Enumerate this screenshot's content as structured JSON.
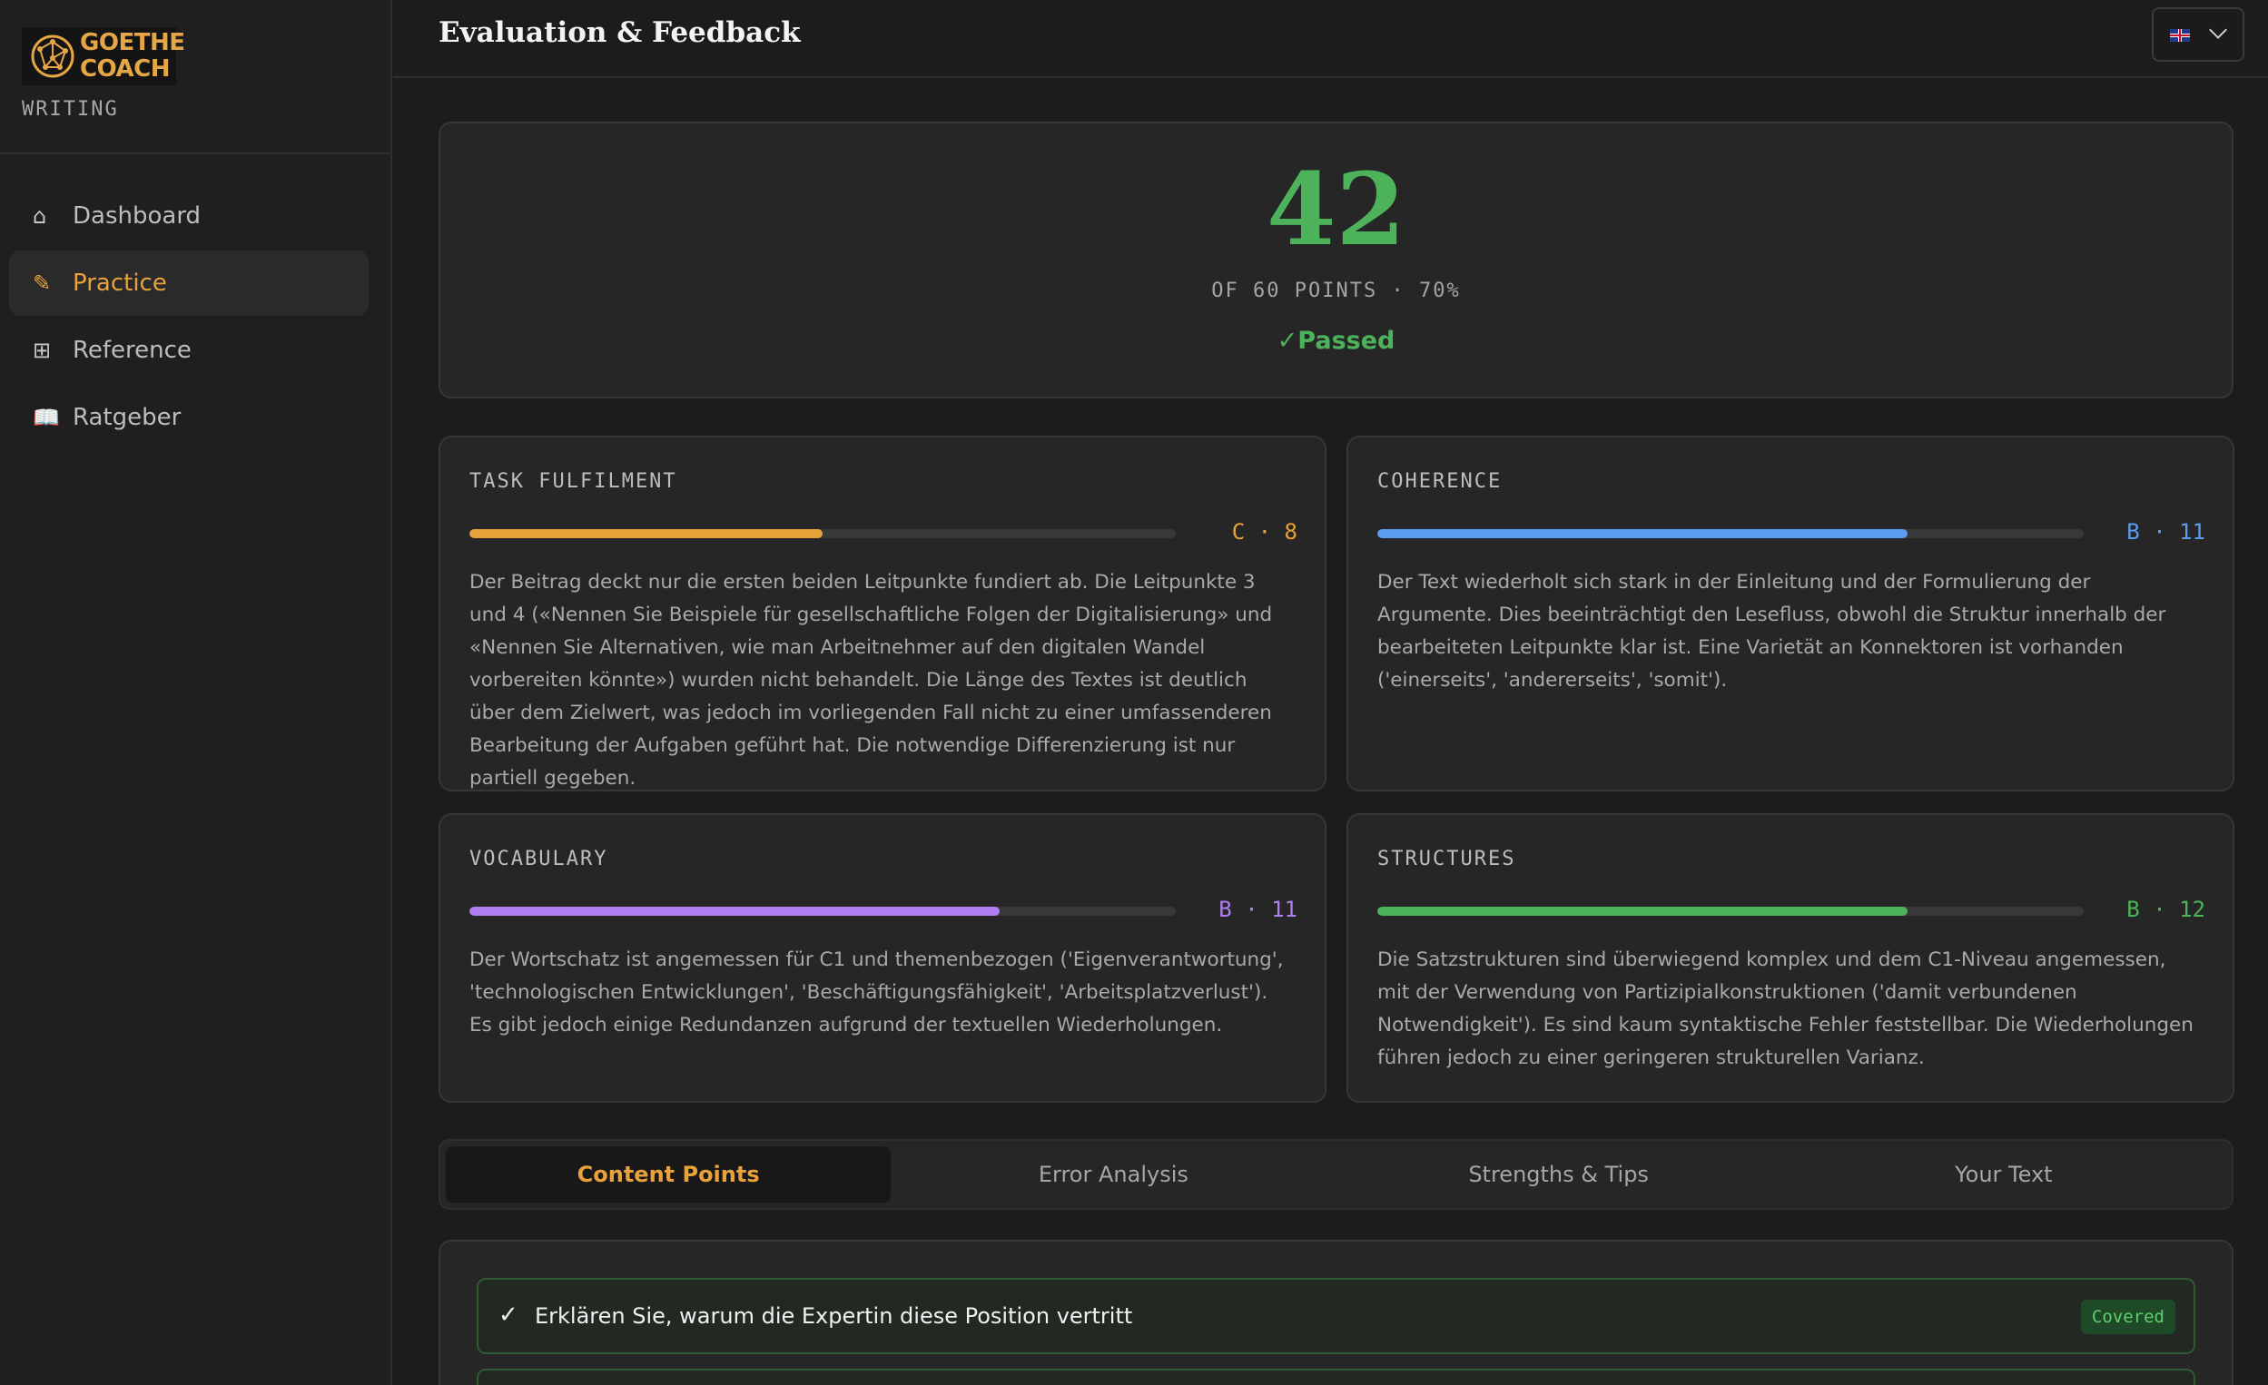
{
  "sidebar": {
    "brand": {
      "logo_line1": "GOETHE",
      "logo_line2": "COACH",
      "subtitle": "WRITING"
    },
    "items": [
      {
        "icon": "home-icon",
        "glyph": "⌂",
        "label": "Dashboard",
        "active": false
      },
      {
        "icon": "pencil-icon",
        "glyph": "✎",
        "label": "Practice",
        "active": true
      },
      {
        "icon": "grid-icon",
        "glyph": "⊞",
        "label": "Reference",
        "active": false
      },
      {
        "icon": "book-icon",
        "glyph": "📖",
        "label": "Ratgeber",
        "active": false
      }
    ]
  },
  "header": {
    "title": "Evaluation & Feedback",
    "language_flag": "uk-flag-icon"
  },
  "score": {
    "value": "42",
    "subtitle": "OF 60 POINTS · 70%",
    "status": "✓Passed",
    "color": "#4cb35b",
    "percent": 70
  },
  "criteria": [
    {
      "title": "TASK FULFILMENT",
      "grade": "C · 8",
      "progress": 0.5,
      "color": "#e8a23a",
      "text": "Der Beitrag deckt nur die ersten beiden Leitpunkte fundiert ab. Die Leitpunkte 3 und 4 («Nennen Sie Beispiele für gesellschaftliche Folgen der Digitalisierung» und «Nennen Sie Alternativen, wie man Arbeitnehmer auf den digitalen Wandel vorbereiten könnte») wurden nicht behandelt. Die Länge des Textes ist deutlich über dem Zielwert, was jedoch im vorliegenden Fall nicht zu einer umfassenderen Bearbeitung der Aufgaben geführt hat. Die notwendige Differenzierung ist nur partiell gegeben."
    },
    {
      "title": "COHERENCE",
      "grade": "B · 11",
      "progress": 0.75,
      "color": "#5b9bf0",
      "text": "Der Text wiederholt sich stark in der Einleitung und der Formulierung der Argumente. Dies beeinträchtigt den Lesefluss, obwohl die Struktur innerhalb der bearbeiteten Leitpunkte klar ist. Eine Varietät an Konnektoren ist vorhanden ('einerseits', 'andererseits', 'somit')."
    },
    {
      "title": "VOCABULARY",
      "grade": "B · 11",
      "progress": 0.75,
      "color": "#b07ef0",
      "text": "Der Wortschatz ist angemessen für C1 und themenbezogen ('Eigenverantwortung', 'technologischen Entwicklungen', 'Beschäftigungsfähigkeit', 'Arbeitsplatzverlust'). Es gibt jedoch einige Redundanzen aufgrund der textuellen Wiederholungen."
    },
    {
      "title": "STRUCTURES",
      "grade": "B · 12",
      "progress": 0.75,
      "color": "#4cb35b",
      "text": "Die Satzstrukturen sind überwiegend komplex und dem C1-Niveau angemessen, mit der Verwendung von Partizipialkonstruktionen ('damit verbundenen Notwendigkeit'). Es sind kaum syntaktische Fehler feststellbar. Die Wiederholungen führen jedoch zu einer geringeren strukturellen Varianz."
    }
  ],
  "tabs": [
    {
      "label": "Content Points",
      "active": true
    },
    {
      "label": "Error Analysis",
      "active": false
    },
    {
      "label": "Strengths & Tips",
      "active": false
    },
    {
      "label": "Your Text",
      "active": false
    }
  ],
  "content_points": [
    {
      "check": "✓",
      "text": "Erklären Sie, warum die Expertin diese Position vertritt",
      "badge": "Covered"
    }
  ]
}
